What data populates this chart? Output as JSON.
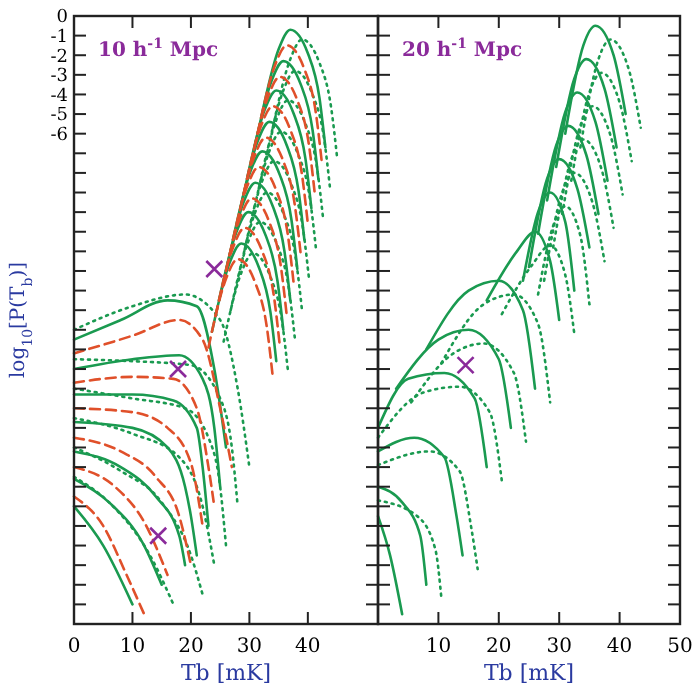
{
  "chart_data": [
    {
      "type": "line",
      "annotations": [
        "10 h$^{-1}$ Mpc"
      ],
      "xlabel": "Tb [mK]",
      "ylabel": "log$_{10}$[P(T$_{b}$)]",
      "xlim": [
        0,
        52
      ],
      "xticks": [
        0,
        10,
        20,
        30,
        40
      ],
      "ylim": [
        -31,
        0
      ],
      "yticks": [
        0,
        -1,
        -2,
        -3,
        -4,
        -5,
        -6,
        {
          "value": -7,
          "label": null
        },
        {
          "value": -8,
          "label": null
        },
        {
          "value": -9,
          "label": null
        },
        {
          "value": -10,
          "label": null
        },
        {
          "value": -11,
          "label": null
        },
        {
          "value": -12,
          "label": null
        },
        {
          "value": -13,
          "label": null
        },
        {
          "value": -14,
          "label": null
        },
        {
          "value": -15,
          "label": null
        },
        {
          "value": -16,
          "label": null
        },
        {
          "value": -17,
          "label": null
        },
        {
          "value": -18,
          "label": null
        },
        {
          "value": -19,
          "label": null
        },
        {
          "value": -20,
          "label": null
        },
        {
          "value": -21,
          "label": null
        },
        {
          "value": -22,
          "label": null
        },
        {
          "value": -23,
          "label": null
        },
        {
          "value": -24,
          "label": null
        },
        {
          "value": -25,
          "label": null
        },
        {
          "value": -26,
          "label": null
        },
        {
          "value": -27,
          "label": null
        },
        {
          "value": -28,
          "label": null
        },
        {
          "value": -29,
          "label": null
        },
        {
          "value": -30,
          "label": null
        }
      ],
      "grid": false,
      "series": [
        {
          "type": "line",
          "color": "#1a9a50",
          "line_style": "dotted",
          "x": [
            34,
            37,
            39,
            42,
            44,
            45
          ],
          "values": [
            -5.7,
            -2.2,
            -1.2,
            -2.4,
            -4.7,
            -7.2
          ]
        },
        {
          "type": "line",
          "color": "#1a9a50",
          "line_style": "dotted",
          "x": [
            32.8,
            35.8,
            37.8,
            40.8,
            42.8,
            43.8
          ],
          "values": [
            -7.3,
            -3.8,
            -2.8,
            -4,
            -6.3,
            -8.8
          ]
        },
        {
          "type": "line",
          "color": "#1a9a50",
          "line_style": "dotted",
          "x": [
            31.6,
            34.6,
            36.6,
            39.6,
            41.6,
            42.6
          ],
          "values": [
            -8.8,
            -5.3,
            -4.3,
            -5.5,
            -7.8,
            -10.3
          ]
        },
        {
          "type": "line",
          "color": "#1a9a50",
          "line_style": "dotted",
          "x": [
            30.4,
            33.4,
            35.4,
            38.4,
            40.4,
            41.4
          ],
          "values": [
            -10.4,
            -6.9,
            -5.9,
            -7.1,
            -9.4,
            -11.9
          ]
        },
        {
          "type": "line",
          "color": "#1a9a50",
          "line_style": "dotted",
          "x": [
            29.2,
            32.2,
            34.2,
            37.2,
            39.2,
            40.2
          ],
          "values": [
            -11.9,
            -8.4,
            -7.4,
            -8.6,
            -10.9,
            -13.4
          ]
        },
        {
          "type": "line",
          "color": "#1a9a50",
          "line_style": "dotted",
          "x": [
            28,
            31,
            33,
            36,
            38,
            39
          ],
          "values": [
            -13.5,
            -10,
            -9,
            -10.2,
            -12.5,
            -15
          ]
        },
        {
          "type": "line",
          "color": "#1a9a50",
          "line_style": "dotted",
          "x": [
            26.8,
            29.8,
            31.8,
            34.8,
            36.8,
            37.8
          ],
          "values": [
            -15,
            -11.5,
            -10.5,
            -11.7,
            -14,
            -16.5
          ]
        },
        {
          "type": "line",
          "color": "#1a9a50",
          "line_style": "dotted",
          "x": [
            25.6,
            28.6,
            30.6,
            33.6,
            35.6,
            36.6
          ],
          "values": [
            -16.6,
            -13.1,
            -12.1,
            -13.3,
            -15.6,
            -18.1
          ]
        },
        {
          "type": "line",
          "color": "#1a9a50",
          "line_style": "dotted",
          "x": [
            0,
            10,
            19,
            25,
            28,
            30
          ],
          "values": [
            -16,
            -14.8,
            -14.2,
            -15.5,
            -19,
            -23
          ]
        },
        {
          "type": "line",
          "color": "#1a9a50",
          "line_style": "dotted",
          "x": [
            0,
            10,
            20,
            25,
            27,
            28
          ],
          "values": [
            -17.5,
            -17.6,
            -17.8,
            -19.5,
            -22,
            -25
          ]
        },
        {
          "type": "line",
          "color": "#1a9a50",
          "line_style": "dotted",
          "x": [
            0,
            10,
            19,
            23,
            25,
            26
          ],
          "values": [
            -19,
            -19.5,
            -20,
            -21.5,
            -24,
            -27
          ]
        },
        {
          "type": "line",
          "color": "#1a9a50",
          "line_style": "dotted",
          "x": [
            0,
            10,
            18,
            22,
            24
          ],
          "values": [
            -20.5,
            -21.3,
            -22.5,
            -25,
            -28
          ]
        },
        {
          "type": "line",
          "color": "#1a9a50",
          "line_style": "dotted",
          "x": [
            0,
            8,
            15,
            20,
            22
          ],
          "values": [
            -22,
            -23.2,
            -24.8,
            -27.5,
            -29.5
          ]
        },
        {
          "type": "line",
          "color": "#1a9a50",
          "line_style": "dotted",
          "x": [
            0,
            6,
            13,
            17
          ],
          "values": [
            -23.5,
            -24.8,
            -27.5,
            -30
          ]
        },
        {
          "type": "line",
          "color": "#1a9a50",
          "line_style": "solid",
          "x": [
            32,
            35,
            37,
            40,
            42,
            43
          ],
          "values": [
            -5.2,
            -1.7,
            -0.7,
            -1.9,
            -4.2,
            -6.7
          ]
        },
        {
          "type": "line",
          "color": "#1a9a50",
          "line_style": "solid",
          "x": [
            30.8,
            33.8,
            35.8,
            38.8,
            40.8,
            41.8
          ],
          "values": [
            -6.8,
            -3.3,
            -2.3,
            -3.5,
            -5.8,
            -8.3
          ]
        },
        {
          "type": "line",
          "color": "#1a9a50",
          "line_style": "solid",
          "x": [
            29.6,
            32.6,
            34.6,
            37.6,
            39.6,
            40.6
          ],
          "values": [
            -8.3,
            -4.8,
            -3.8,
            -5,
            -7.3,
            -9.8
          ]
        },
        {
          "type": "line",
          "color": "#1a9a50",
          "line_style": "solid",
          "x": [
            28.4,
            31.4,
            33.4,
            36.4,
            38.4,
            39.4
          ],
          "values": [
            -9.9,
            -6.4,
            -5.4,
            -6.6,
            -8.9,
            -11.4
          ]
        },
        {
          "type": "line",
          "color": "#1a9a50",
          "line_style": "solid",
          "x": [
            27.2,
            30.2,
            32.2,
            35.2,
            37.2,
            38.2
          ],
          "values": [
            -11.4,
            -7.9,
            -6.9,
            -8.1,
            -10.4,
            -12.9
          ]
        },
        {
          "type": "line",
          "color": "#1a9a50",
          "line_style": "solid",
          "x": [
            26,
            29,
            31,
            34,
            36,
            37
          ],
          "values": [
            -13,
            -9.5,
            -8.5,
            -9.7,
            -12,
            -14.5
          ]
        },
        {
          "type": "line",
          "color": "#1a9a50",
          "line_style": "solid",
          "x": [
            24.8,
            27.8,
            29.8,
            32.8,
            34.8,
            35.8
          ],
          "values": [
            -14.5,
            -11,
            -10,
            -11.2,
            -13.5,
            -16
          ]
        },
        {
          "type": "line",
          "color": "#1a9a50",
          "line_style": "solid",
          "x": [
            23.6,
            26.6,
            28.6,
            31.6,
            33.6,
            34.6
          ],
          "values": [
            -16.1,
            -12.6,
            -11.6,
            -12.8,
            -15.1,
            -17.6
          ]
        },
        {
          "type": "line",
          "color": "#1a9a50",
          "line_style": "solid",
          "x": [
            0,
            8,
            16,
            21,
            24,
            26
          ],
          "values": [
            -16.5,
            -15.5,
            -14.5,
            -14.8,
            -18,
            -22
          ]
        },
        {
          "type": "line",
          "color": "#1a9a50",
          "line_style": "solid",
          "x": [
            0,
            10,
            18,
            22,
            24,
            25
          ],
          "values": [
            -18,
            -17.5,
            -17.3,
            -18.5,
            -21,
            -24
          ]
        },
        {
          "type": "line",
          "color": "#1a9a50",
          "line_style": "solid",
          "x": [
            0,
            10,
            17,
            21,
            22,
            23
          ],
          "values": [
            -19.3,
            -19.3,
            -19.6,
            -21,
            -23,
            -26
          ]
        },
        {
          "type": "line",
          "color": "#1a9a50",
          "line_style": "solid",
          "x": [
            0,
            10,
            16,
            19,
            20,
            21
          ],
          "values": [
            -20.7,
            -21,
            -22,
            -24,
            -25.5,
            -27.5
          ]
        },
        {
          "type": "line",
          "color": "#1a9a50",
          "line_style": "solid",
          "x": [
            0,
            8,
            14,
            18,
            19
          ],
          "values": [
            -22.2,
            -23,
            -24.5,
            -26.5,
            -28
          ]
        },
        {
          "type": "line",
          "color": "#1a9a50",
          "line_style": "solid",
          "x": [
            0,
            6,
            12,
            15
          ],
          "values": [
            -23.6,
            -24.8,
            -27,
            -29
          ]
        },
        {
          "type": "line",
          "color": "#1a9a50",
          "line_style": "solid",
          "x": [
            0,
            5,
            10
          ],
          "values": [
            -25,
            -27,
            -30
          ]
        },
        {
          "type": "line",
          "color": "#e0502a",
          "line_style": "dashed",
          "x": [
            31.4,
            34.4,
            36.4,
            39.4,
            41.4,
            42.4
          ],
          "values": [
            -6,
            -2.5,
            -1.5,
            -2.7,
            -5,
            -7.5
          ]
        },
        {
          "type": "line",
          "color": "#e0502a",
          "line_style": "dashed",
          "x": [
            30.2,
            33.2,
            35.2,
            38.2,
            40.2,
            41.2
          ],
          "values": [
            -7.6,
            -4.1,
            -3.1,
            -4.3,
            -6.6,
            -9.1
          ]
        },
        {
          "type": "line",
          "color": "#e0502a",
          "line_style": "dashed",
          "x": [
            29,
            32,
            34,
            37,
            39,
            40
          ],
          "values": [
            -9.1,
            -5.6,
            -4.6,
            -5.8,
            -8.1,
            -10.6
          ]
        },
        {
          "type": "line",
          "color": "#e0502a",
          "line_style": "dashed",
          "x": [
            27.8,
            30.8,
            32.8,
            35.8,
            37.8,
            38.8
          ],
          "values": [
            -10.7,
            -7.2,
            -6.2,
            -7.4,
            -9.7,
            -12.2
          ]
        },
        {
          "type": "line",
          "color": "#e0502a",
          "line_style": "dashed",
          "x": [
            26.6,
            29.6,
            31.6,
            34.6,
            36.6,
            37.6
          ],
          "values": [
            -12.2,
            -8.7,
            -7.7,
            -8.9,
            -11.2,
            -13.7
          ]
        },
        {
          "type": "line",
          "color": "#e0502a",
          "line_style": "dashed",
          "x": [
            25.4,
            28.4,
            30.4,
            33.4,
            35.4,
            36.4
          ],
          "values": [
            -13.8,
            -10.3,
            -9.3,
            -10.5,
            -12.8,
            -15.3
          ]
        },
        {
          "type": "line",
          "color": "#e0502a",
          "line_style": "dashed",
          "x": [
            24.2,
            27.2,
            29.2,
            32.2,
            34.2,
            35.2
          ],
          "values": [
            -15.3,
            -11.8,
            -10.8,
            -12,
            -14.3,
            -16.8
          ]
        },
        {
          "type": "line",
          "color": "#e0502a",
          "line_style": "dashed",
          "x": [
            23,
            26,
            28,
            31,
            33,
            34
          ],
          "values": [
            -16.9,
            -13.4,
            -12.4,
            -13.6,
            -15.9,
            -18.4
          ]
        },
        {
          "type": "line",
          "color": "#e0502a",
          "line_style": "dashed",
          "x": [
            0,
            10,
            18,
            22,
            25,
            27
          ],
          "values": [
            -17.2,
            -16.3,
            -15.5,
            -16.5,
            -20,
            -23
          ]
        },
        {
          "type": "line",
          "color": "#e0502a",
          "line_style": "dashed",
          "x": [
            0,
            10,
            17,
            21,
            23,
            24
          ],
          "values": [
            -18.7,
            -18.4,
            -18.5,
            -20,
            -23,
            -25
          ]
        },
        {
          "type": "line",
          "color": "#e0502a",
          "line_style": "dashed",
          "x": [
            0,
            10,
            16,
            20,
            22
          ],
          "values": [
            -20,
            -20.2,
            -21,
            -22.8,
            -26
          ]
        },
        {
          "type": "line",
          "color": "#e0502a",
          "line_style": "dashed",
          "x": [
            0,
            8,
            14,
            18,
            20
          ],
          "values": [
            -21.5,
            -22.2,
            -23.5,
            -25.5,
            -28
          ]
        },
        {
          "type": "line",
          "color": "#e0502a",
          "line_style": "dashed",
          "x": [
            0,
            7,
            12,
            16
          ],
          "values": [
            -23,
            -24,
            -25.8,
            -28.5
          ]
        },
        {
          "type": "line",
          "color": "#e0502a",
          "line_style": "dashed",
          "x": [
            0,
            5,
            9,
            12
          ],
          "values": [
            -24.5,
            -26,
            -28.5,
            -30.5
          ]
        },
        {
          "type": "scatter",
          "color": "#8a2a9a",
          "marker": "cross",
          "x": [
            24,
            17.8,
            14.4
          ],
          "values": [
            -12.9,
            -18,
            -26.5
          ]
        }
      ]
    },
    {
      "type": "line",
      "annotations": [
        "20 h$^{-1}$ Mpc"
      ],
      "xlabel": "Tb [mK]",
      "xlim": [
        0,
        50
      ],
      "xticks": [
        {
          "value": 0,
          "label": null
        },
        10,
        20,
        30,
        40,
        50
      ],
      "ylim": [
        -31,
        0
      ],
      "yticks": [
        0,
        -1,
        -2,
        -3,
        -4,
        -5,
        -6,
        -7,
        -8,
        -9,
        -10,
        -11,
        -12,
        -13,
        -14,
        -15,
        -16,
        -17,
        -18,
        -19,
        -20,
        -21,
        -22,
        -23,
        -24,
        -25,
        -26,
        -27,
        -28,
        -29,
        -30
      ],
      "tick_labels": "x",
      "grid": false,
      "series": [
        {
          "type": "line",
          "color": "#1a9a50",
          "line_style": "dotted",
          "x": [
            33.5,
            36.5,
            38.5,
            41.5,
            43.5
          ],
          "values": [
            -6.7,
            -2.2,
            -1.2,
            -2.7,
            -5.7
          ]
        },
        {
          "type": "line",
          "color": "#1a9a50",
          "line_style": "dotted",
          "x": [
            32,
            35,
            37,
            40,
            42
          ],
          "values": [
            -8.4,
            -3.9,
            -2.9,
            -4.4,
            -7.4
          ]
        },
        {
          "type": "line",
          "color": "#1a9a50",
          "line_style": "dotted",
          "x": [
            30.5,
            33.5,
            35.5,
            38.5,
            40.5
          ],
          "values": [
            -10.1,
            -5.6,
            -4.6,
            -6.1,
            -9.1
          ]
        },
        {
          "type": "line",
          "color": "#1a9a50",
          "line_style": "dotted",
          "x": [
            29,
            32,
            34,
            37,
            39
          ],
          "values": [
            -11.8,
            -7.3,
            -6.3,
            -7.8,
            -10.8
          ]
        },
        {
          "type": "line",
          "color": "#1a9a50",
          "line_style": "dotted",
          "x": [
            27.5,
            30.5,
            32.5,
            35.5,
            37.5
          ],
          "values": [
            -13.5,
            -9,
            -8,
            -9.5,
            -12.5
          ]
        },
        {
          "type": "line",
          "color": "#1a9a50",
          "line_style": "dotted",
          "x": [
            26.5,
            29,
            31,
            33.5,
            35
          ],
          "values": [
            -14.2,
            -10.7,
            -9.7,
            -11.2,
            -14.7
          ]
        },
        {
          "type": "line",
          "color": "#1a9a50",
          "line_style": "dotted",
          "x": [
            20.5,
            25.5,
            28.5,
            31,
            32.5
          ],
          "values": [
            -15.2,
            -12.7,
            -11.7,
            -13.2,
            -16.2
          ]
        },
        {
          "type": "line",
          "color": "#1a9a50",
          "line_style": "dotted",
          "x": [
            10.5,
            17.5,
            22.5,
            26.5,
            28.5
          ],
          "values": [
            -17.7,
            -14.7,
            -14.2,
            -15.7,
            -19.7
          ]
        },
        {
          "type": "line",
          "color": "#1a9a50",
          "line_style": "dotted",
          "x": [
            5.5,
            12.5,
            17.5,
            22.5,
            24.5
          ],
          "values": [
            -19.7,
            -17.2,
            -16.7,
            -18.2,
            -21.7
          ]
        },
        {
          "type": "line",
          "color": "#1a9a50",
          "line_style": "dotted",
          "x": [
            0,
            7.5,
            13.5,
            18.5,
            20.5
          ],
          "values": [
            -21.5,
            -19.2,
            -18.9,
            -20.2,
            -23.7
          ]
        },
        {
          "type": "line",
          "color": "#1a9a50",
          "line_style": "dotted",
          "x": [
            0,
            8.5,
            13.5,
            15.5,
            16.5
          ],
          "values": [
            -22.9,
            -22.2,
            -23.2,
            -26.2,
            -28.2
          ]
        },
        {
          "type": "line",
          "color": "#1a9a50",
          "line_style": "dotted",
          "x": [
            0,
            6.5,
            9.5,
            10.5
          ],
          "values": [
            -24.7,
            -25.5,
            -27.2,
            -29.7
          ]
        },
        {
          "type": "line",
          "color": "#1a9a50",
          "line_style": "solid",
          "x": [
            31,
            34,
            36,
            39,
            41
          ],
          "values": [
            -6,
            -1.5,
            -0.5,
            -2,
            -5
          ]
        },
        {
          "type": "line",
          "color": "#1a9a50",
          "line_style": "solid",
          "x": [
            29.5,
            32.5,
            34.5,
            37.5,
            39.5
          ],
          "values": [
            -7.7,
            -3.2,
            -2.2,
            -3.7,
            -6.7
          ]
        },
        {
          "type": "line",
          "color": "#1a9a50",
          "line_style": "solid",
          "x": [
            28,
            31,
            33,
            36,
            38
          ],
          "values": [
            -9.4,
            -4.9,
            -3.9,
            -5.4,
            -8.4
          ]
        },
        {
          "type": "line",
          "color": "#1a9a50",
          "line_style": "solid",
          "x": [
            26.5,
            29.5,
            31.5,
            34.5,
            36.5
          ],
          "values": [
            -11.1,
            -6.6,
            -5.6,
            -7.1,
            -10.1
          ]
        },
        {
          "type": "line",
          "color": "#1a9a50",
          "line_style": "solid",
          "x": [
            25,
            28,
            30,
            33,
            35
          ],
          "values": [
            -12.8,
            -8.3,
            -7.3,
            -8.8,
            -11.8
          ]
        },
        {
          "type": "line",
          "color": "#1a9a50",
          "line_style": "solid",
          "x": [
            24,
            26.5,
            28.5,
            31,
            32.5
          ],
          "values": [
            -13.5,
            -10,
            -9,
            -10.5,
            -14
          ]
        },
        {
          "type": "line",
          "color": "#1a9a50",
          "line_style": "solid",
          "x": [
            18,
            23,
            26,
            28.5,
            30
          ],
          "values": [
            -14.5,
            -12,
            -11,
            -12.5,
            -15.5
          ]
        },
        {
          "type": "line",
          "color": "#1a9a50",
          "line_style": "solid",
          "x": [
            8,
            15,
            20,
            24,
            26
          ],
          "values": [
            -17,
            -14,
            -13.5,
            -15,
            -19
          ]
        },
        {
          "type": "line",
          "color": "#1a9a50",
          "line_style": "solid",
          "x": [
            3,
            10,
            15,
            20,
            22
          ],
          "values": [
            -19,
            -16.5,
            -16,
            -17.5,
            -21
          ]
        },
        {
          "type": "line",
          "color": "#1a9a50",
          "line_style": "solid",
          "x": [
            0,
            5,
            11,
            16,
            18
          ],
          "values": [
            -21,
            -18.5,
            -18.2,
            -19.5,
            -23
          ]
        },
        {
          "type": "line",
          "color": "#1a9a50",
          "line_style": "solid",
          "x": [
            0,
            6,
            11,
            13,
            14
          ],
          "values": [
            -22.2,
            -21.5,
            -22.5,
            -25.5,
            -27.5
          ]
        },
        {
          "type": "line",
          "color": "#1a9a50",
          "line_style": "solid",
          "x": [
            0,
            4,
            7,
            8
          ],
          "values": [
            -24,
            -24.8,
            -26.5,
            -29
          ]
        },
        {
          "type": "line",
          "color": "#1a9a50",
          "line_style": "solid",
          "x": [
            0,
            2,
            4
          ],
          "values": [
            -25.5,
            -27.5,
            -30.5
          ]
        },
        {
          "type": "scatter",
          "color": "#8a2a9a",
          "marker": "cross",
          "x": [
            14.5
          ],
          "values": [
            -17.8
          ]
        }
      ]
    }
  ]
}
